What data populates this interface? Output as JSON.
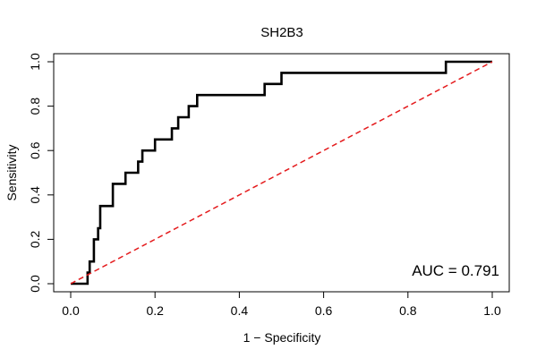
{
  "chart_data": {
    "type": "line",
    "title": "SH2B3",
    "xlabel": "1 − Specificity",
    "ylabel": "Sensitivity",
    "xlim": [
      0,
      1
    ],
    "ylim": [
      0,
      1
    ],
    "x_ticks": [
      "0.0",
      "0.2",
      "0.4",
      "0.6",
      "0.8",
      "1.0"
    ],
    "y_ticks": [
      "0.0",
      "0.2",
      "0.4",
      "0.6",
      "0.8",
      "1.0"
    ],
    "annotation": "AUC = 0.791",
    "grid": false,
    "series": [
      {
        "color": "#000000",
        "style": "step",
        "x": [
          0.0,
          0.04,
          0.04,
          0.045,
          0.045,
          0.055,
          0.055,
          0.065,
          0.065,
          0.07,
          0.07,
          0.075,
          0.075,
          0.1,
          0.1,
          0.13,
          0.13,
          0.16,
          0.16,
          0.17,
          0.17,
          0.2,
          0.2,
          0.24,
          0.24,
          0.255,
          0.255,
          0.28,
          0.28,
          0.3,
          0.3,
          0.46,
          0.46,
          0.5,
          0.5,
          0.89,
          0.89,
          1.0
        ],
        "y": [
          0.0,
          0.0,
          0.05,
          0.05,
          0.1,
          0.1,
          0.2,
          0.2,
          0.25,
          0.25,
          0.35,
          0.35,
          0.35,
          0.35,
          0.45,
          0.45,
          0.5,
          0.5,
          0.55,
          0.55,
          0.6,
          0.6,
          0.65,
          0.65,
          0.7,
          0.7,
          0.75,
          0.75,
          0.8,
          0.8,
          0.85,
          0.85,
          0.9,
          0.9,
          0.95,
          0.95,
          1.0,
          1.0
        ]
      },
      {
        "color": "#e41a1c",
        "style": "dashed",
        "x": [
          0,
          1
        ],
        "y": [
          0,
          1
        ]
      }
    ]
  }
}
